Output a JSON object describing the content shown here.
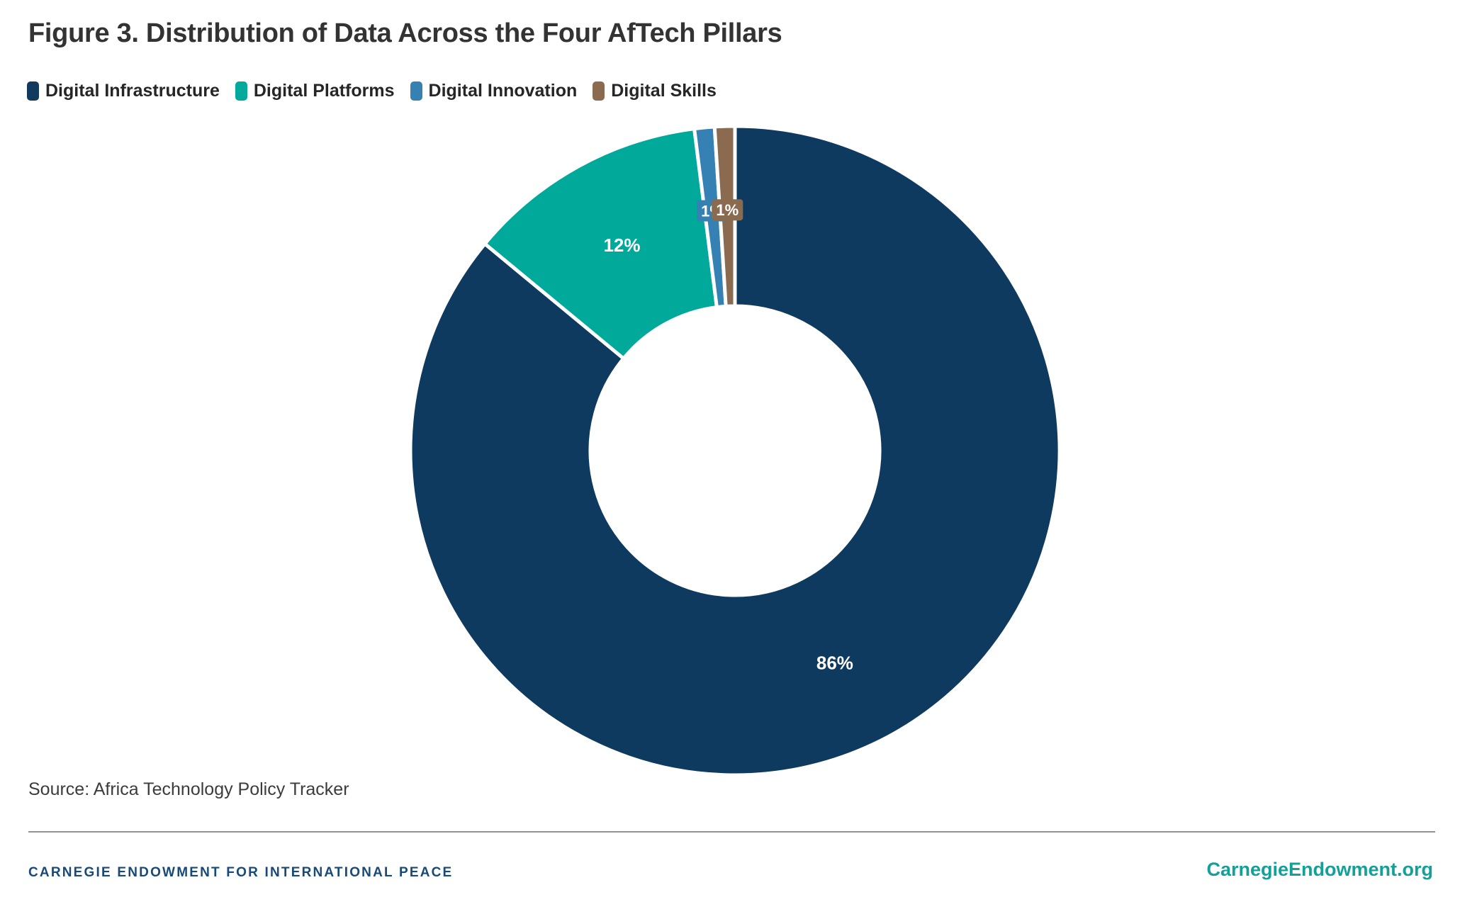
{
  "title": "Figure 3. Distribution of Data Across the Four AfTech Pillars",
  "legend": {
    "items": [
      {
        "label": "Digital Infrastructure",
        "color": "#123a5e"
      },
      {
        "label": "Digital Platforms",
        "color": "#00a99a"
      },
      {
        "label": "Digital Innovation",
        "color": "#3581b4"
      },
      {
        "label": "Digital Skills",
        "color": "#8a6b50"
      }
    ]
  },
  "chart_data": {
    "type": "pie",
    "subtype": "donut",
    "title": "Figure 3. Distribution of Data Across the Four AfTech Pillars",
    "categories": [
      "Digital Infrastructure",
      "Digital Platforms",
      "Digital Innovation",
      "Digital Skills"
    ],
    "values": [
      86,
      12,
      1,
      1
    ],
    "unit": "%",
    "percent_labels": [
      "86%",
      "12%",
      "1%",
      "1%"
    ],
    "colors": [
      "#0e3a5f",
      "#00a99a",
      "#3581b4",
      "#8a6b50"
    ],
    "start_angle_deg": 0,
    "direction": "clockwise",
    "inner_radius_ratio": 0.445,
    "slice_gap_color": "#ffffff",
    "label_text_color": "#ffffff",
    "legend_position": "top-left"
  },
  "source": "Source: Africa Technology Policy Tracker",
  "footer": {
    "left": "CARNEGIE ENDOWMENT FOR INTERNATIONAL PEACE",
    "left_color": "#174a78",
    "right": "CarnegieEndowment.org",
    "right_color": "#12a099"
  }
}
